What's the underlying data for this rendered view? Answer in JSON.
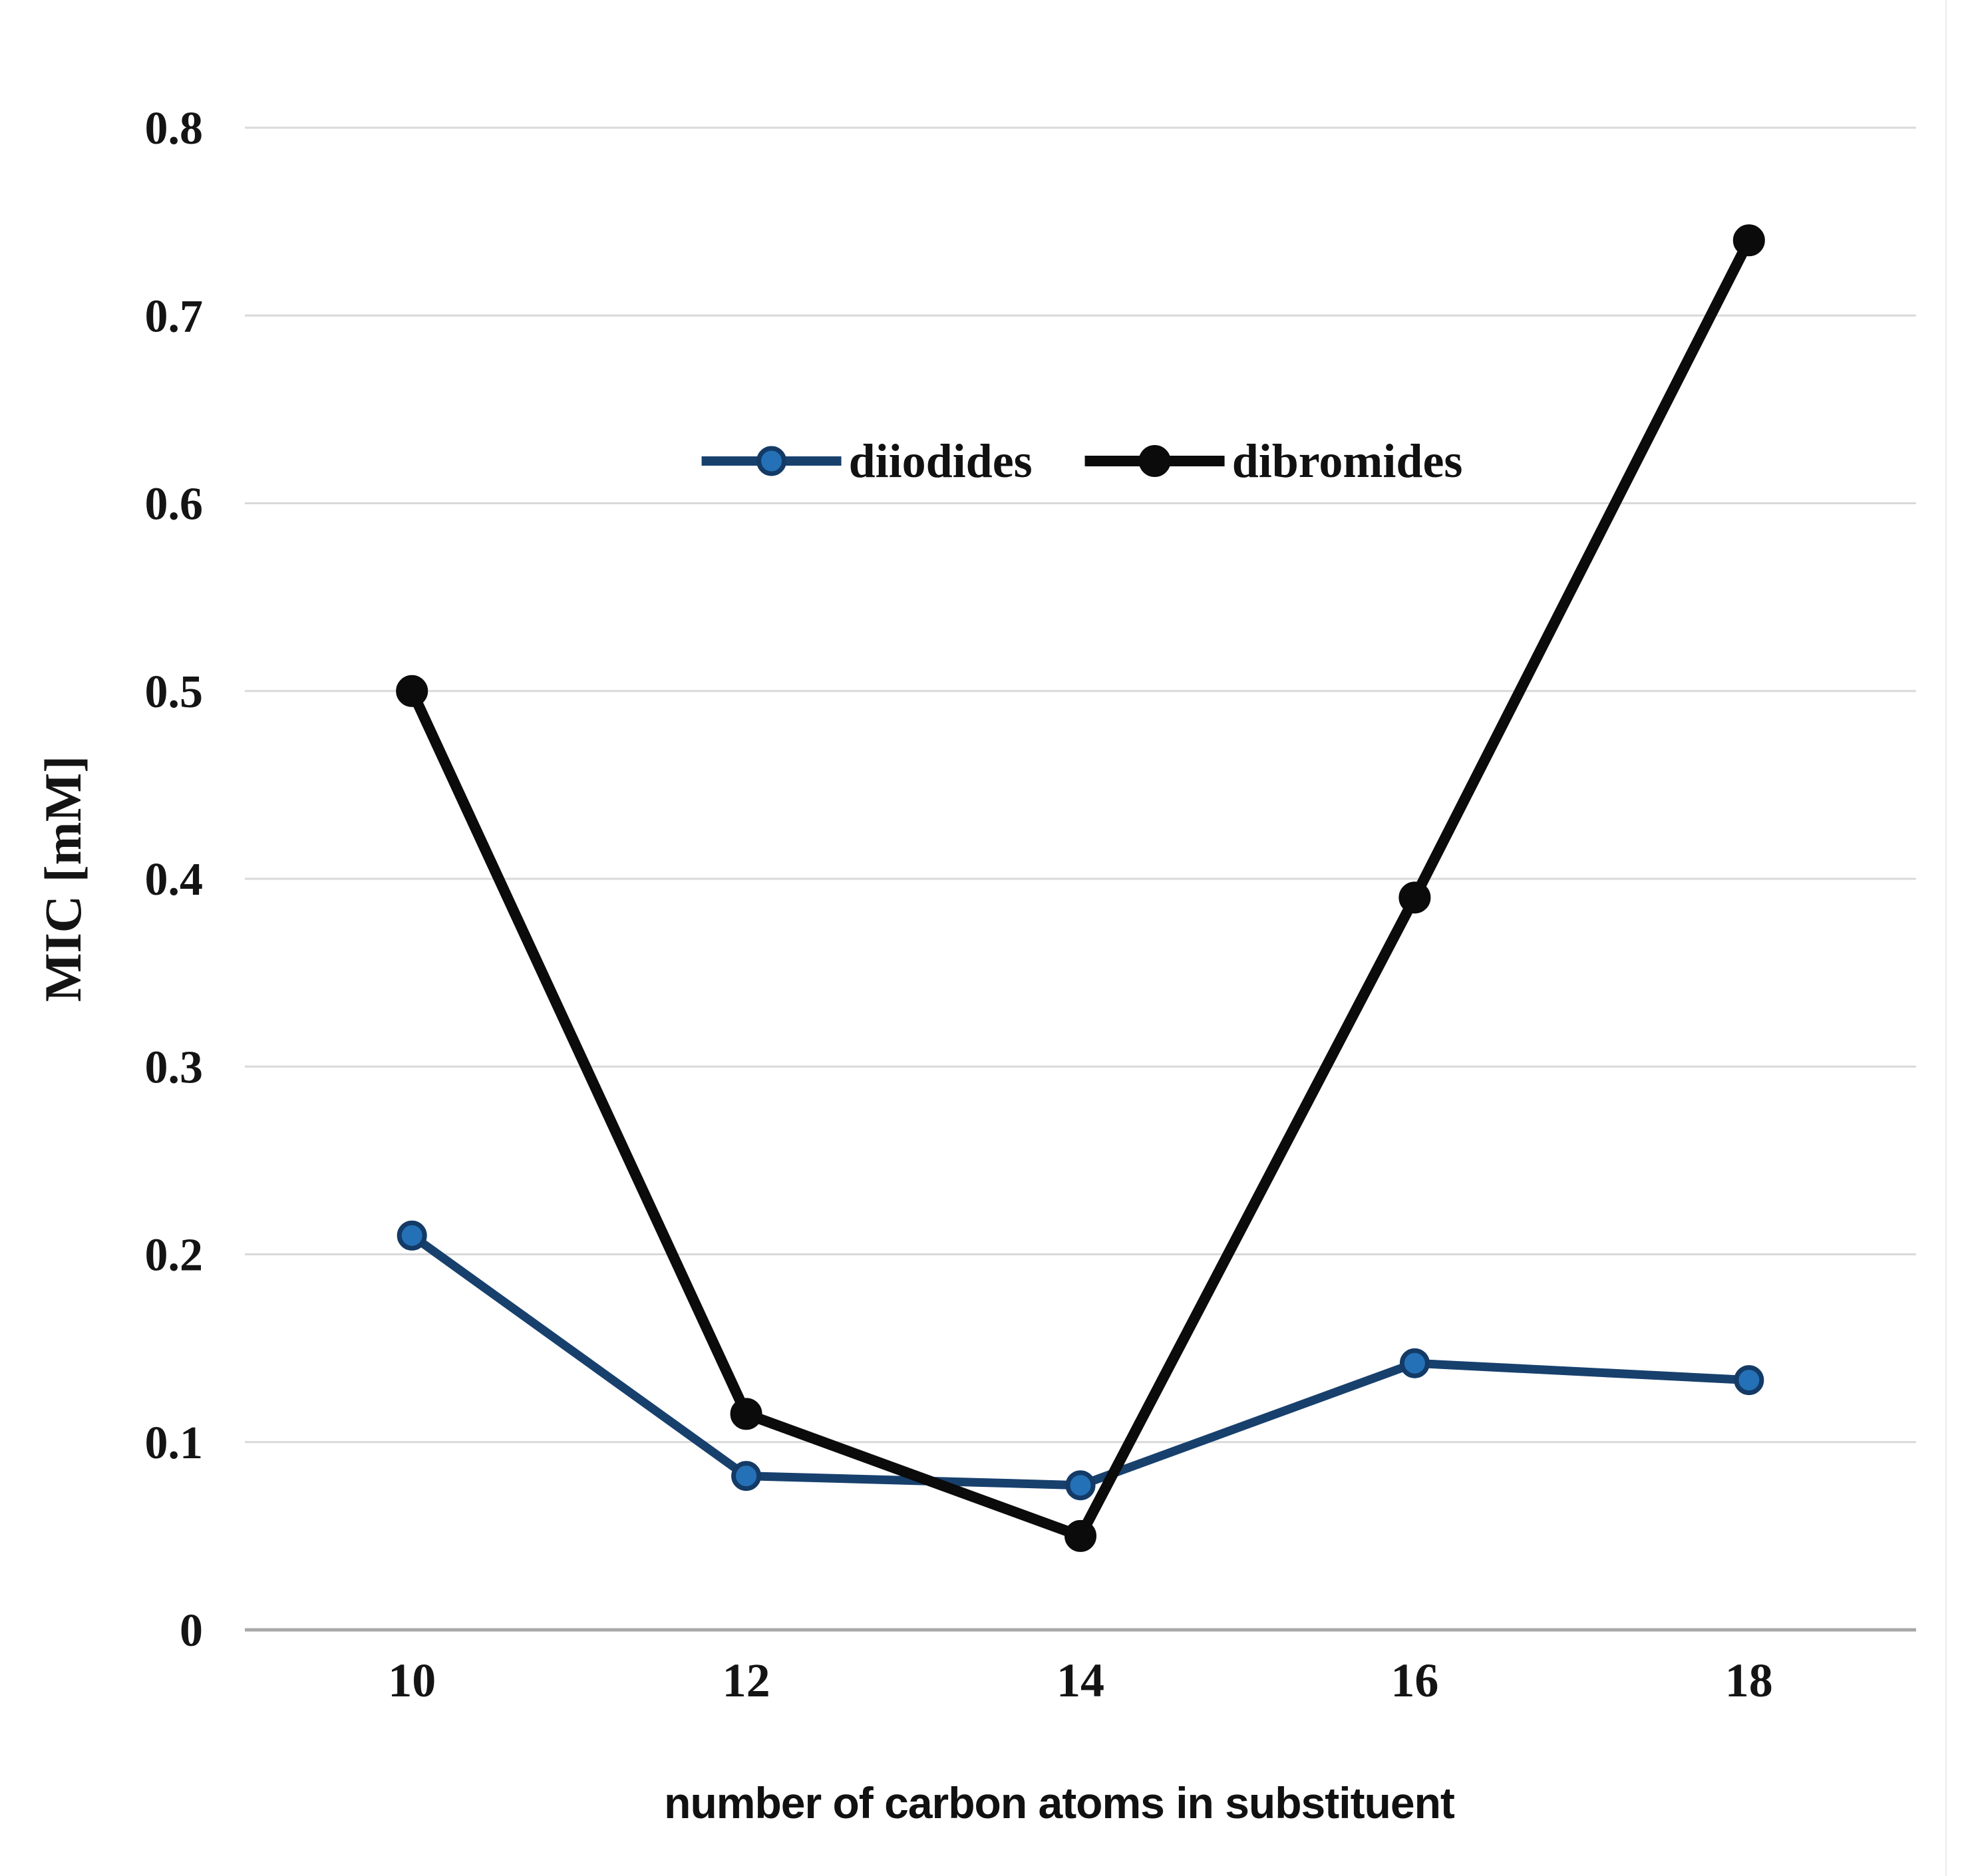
{
  "chart_data": {
    "type": "line",
    "title": "",
    "xlabel": "number of carbon atoms in substituent",
    "ylabel": "MIC [mM]",
    "x": [
      10,
      12,
      14,
      16,
      18
    ],
    "xtick_labels": [
      "10",
      "12",
      "14",
      "16",
      "18"
    ],
    "series": [
      {
        "name": "diiodides",
        "line_color": "#17406d",
        "marker_fill": "#2471b7",
        "marker_edge": "#143a66",
        "values": [
          0.21,
          0.082,
          0.077,
          0.142,
          0.133
        ]
      },
      {
        "name": "dibromides",
        "line_color": "#0b0b0b",
        "marker_fill": "#0b0b0b",
        "marker_edge": "#0b0b0b",
        "values": [
          0.5,
          0.115,
          0.05,
          0.39,
          0.74
        ]
      }
    ],
    "ylim": [
      0,
      0.8
    ],
    "yticks": [
      0,
      0.1,
      0.2,
      0.3,
      0.4,
      0.5,
      0.6,
      0.7,
      0.8
    ],
    "ytick_labels": [
      "0",
      "0.1",
      "0.2",
      "0.3",
      "0.4",
      "0.5",
      "0.6",
      "0.7",
      "0.8"
    ],
    "grid": "horizontal",
    "gridline_color": "#d9d9d9",
    "baseline_color": "#a8a8a8",
    "tick_label_color": "#141414",
    "legend_position": "upper-center-inside",
    "background": "#ffffff"
  }
}
